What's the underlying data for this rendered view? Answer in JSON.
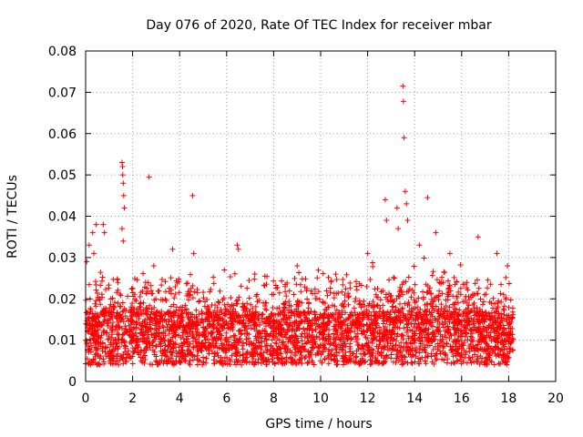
{
  "chart_data": {
    "type": "scatter",
    "title": "Day 076 of 2020, Rate Of TEC Index for receiver mbar",
    "xlabel": "GPS time / hours",
    "ylabel": "ROTI / TECUs",
    "xlim": [
      0,
      20
    ],
    "ylim": [
      0,
      0.08
    ],
    "xticks": [
      "0",
      "2",
      "4",
      "6",
      "8",
      "10",
      "12",
      "14",
      "16",
      "18",
      "20"
    ],
    "yticks": [
      "0",
      "0.01",
      "0.02",
      "0.03",
      "0.04",
      "0.05",
      "0.06",
      "0.07",
      "0.08"
    ],
    "grid": true,
    "marker": "+",
    "color": "#ff0000",
    "series": [
      {
        "name": "ROTI",
        "note": "dense band of several thousand points between ~0.003 and ~0.025 TECU/s from 0 to 18.2 h; representative outliers listed below",
        "points": [
          [
            0.05,
            0.029
          ],
          [
            0.15,
            0.033
          ],
          [
            0.3,
            0.036
          ],
          [
            0.35,
            0.031
          ],
          [
            0.45,
            0.038
          ],
          [
            0.75,
            0.038
          ],
          [
            0.8,
            0.036
          ],
          [
            1.55,
            0.053
          ],
          [
            1.57,
            0.052
          ],
          [
            1.58,
            0.05
          ],
          [
            1.6,
            0.048
          ],
          [
            1.62,
            0.045
          ],
          [
            1.65,
            0.042
          ],
          [
            1.55,
            0.037
          ],
          [
            1.6,
            0.034
          ],
          [
            2.7,
            0.0495
          ],
          [
            2.9,
            0.028
          ],
          [
            3.7,
            0.032
          ],
          [
            4.55,
            0.045
          ],
          [
            4.6,
            0.031
          ],
          [
            5.9,
            0.027
          ],
          [
            6.45,
            0.033
          ],
          [
            6.5,
            0.032
          ],
          [
            7.2,
            0.026
          ],
          [
            9.0,
            0.028
          ],
          [
            12.0,
            0.031
          ],
          [
            12.75,
            0.044
          ],
          [
            12.8,
            0.039
          ],
          [
            13.25,
            0.042
          ],
          [
            13.3,
            0.037
          ],
          [
            13.5,
            0.0715
          ],
          [
            13.52,
            0.0678
          ],
          [
            13.55,
            0.059
          ],
          [
            13.6,
            0.046
          ],
          [
            13.65,
            0.043
          ],
          [
            13.7,
            0.039
          ],
          [
            14.2,
            0.033
          ],
          [
            14.55,
            0.0445
          ],
          [
            14.9,
            0.036
          ],
          [
            15.5,
            0.031
          ],
          [
            16.7,
            0.035
          ],
          [
            17.5,
            0.031
          ],
          [
            17.95,
            0.028
          ]
        ]
      }
    ]
  }
}
